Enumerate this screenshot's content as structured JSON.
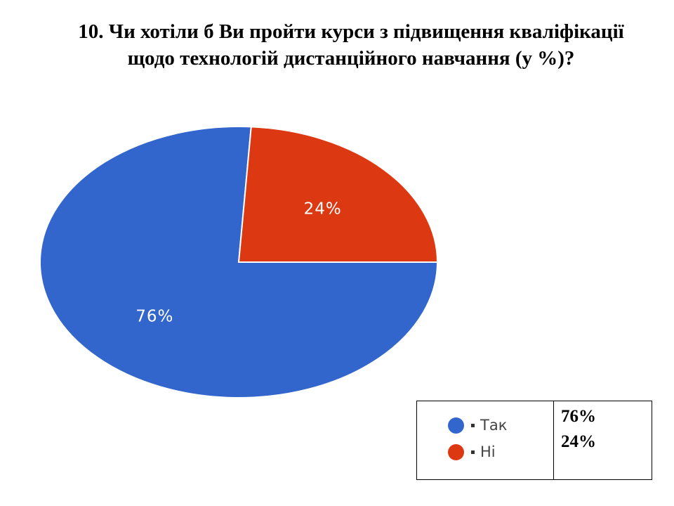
{
  "chart_data": {
    "type": "pie",
    "title_line1": "10. Чи хотіли б Ви пройти курси з підвищення кваліфікації",
    "title_line2": "щодо технологій дистанційного навчання (у %)?",
    "slices": [
      {
        "label": "Так",
        "value": 76,
        "display": "76%",
        "color": "#3366cc"
      },
      {
        "label": "Ні",
        "value": 24,
        "display": "24%",
        "color": "#dc3912"
      }
    ],
    "table_values": [
      "76%",
      "24%"
    ]
  }
}
